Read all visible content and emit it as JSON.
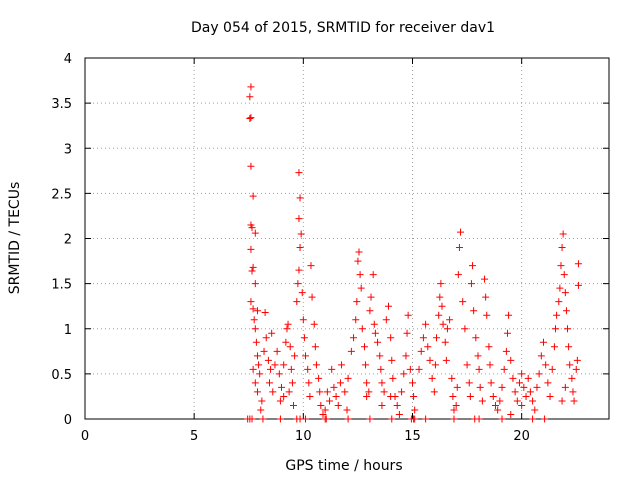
{
  "chart_data": {
    "type": "scatter",
    "title": "Day 054 of 2015, SRMTID for receiver dav1",
    "xlabel": "GPS time / hours",
    "ylabel": "SRMTID / TECUs",
    "xlim": [
      0,
      24
    ],
    "ylim": [
      0,
      4
    ],
    "xticks": [
      0,
      5,
      10,
      15,
      20
    ],
    "xtick_labels": [
      "0",
      "5",
      "10",
      "15",
      "20"
    ],
    "yticks": [
      0,
      0.5,
      1,
      1.5,
      2,
      2.5,
      3,
      3.5,
      4
    ],
    "ytick_labels": [
      "0",
      "0.5",
      "1",
      "1.5",
      "2",
      "2.5",
      "3",
      "3.5",
      "4"
    ],
    "grid": true,
    "marker": "plus",
    "color": "#ff0000",
    "series": [
      {
        "values": [
          [
            7.6,
            3.68
          ],
          [
            7.55,
            3.57
          ],
          [
            7.6,
            3.34
          ],
          [
            7.55,
            3.33
          ],
          [
            7.6,
            2.8
          ],
          [
            7.7,
            2.47
          ],
          [
            7.6,
            2.15
          ],
          [
            7.65,
            2.12
          ],
          [
            7.8,
            2.06
          ],
          [
            7.6,
            1.88
          ],
          [
            7.7,
            1.68
          ],
          [
            7.65,
            1.64
          ],
          [
            7.8,
            1.5
          ],
          [
            7.9,
            1.2
          ],
          [
            7.6,
            1.3
          ],
          [
            7.7,
            1.22
          ],
          [
            7.75,
            1.1
          ],
          [
            7.8,
            1.0
          ],
          [
            7.85,
            0.85
          ],
          [
            7.9,
            0.7
          ],
          [
            7.95,
            0.6
          ],
          [
            8.0,
            0.5
          ],
          [
            7.8,
            0.4
          ],
          [
            7.9,
            0.3
          ],
          [
            8.1,
            0.2
          ],
          [
            8.05,
            0.1
          ],
          [
            7.7,
            0.55
          ],
          [
            8.2,
            0.75
          ],
          [
            8.3,
            0.9
          ],
          [
            8.25,
            1.18
          ],
          [
            8.4,
            0.65
          ],
          [
            8.5,
            0.55
          ],
          [
            8.45,
            0.4
          ],
          [
            8.6,
            0.3
          ],
          [
            8.7,
            0.6
          ],
          [
            8.8,
            0.75
          ],
          [
            8.55,
            0.95
          ],
          [
            8.9,
            0.5
          ],
          [
            9.0,
            0.35
          ],
          [
            8.95,
            0.2
          ],
          [
            9.1,
            0.6
          ],
          [
            9.2,
            0.85
          ],
          [
            9.25,
            1.0
          ],
          [
            9.3,
            1.05
          ],
          [
            9.4,
            0.8
          ],
          [
            9.45,
            0.55
          ],
          [
            9.5,
            0.4
          ],
          [
            9.35,
            0.3
          ],
          [
            9.55,
            0.15
          ],
          [
            9.6,
            0.7
          ],
          [
            9.7,
            1.3
          ],
          [
            9.75,
            1.5
          ],
          [
            9.8,
            1.65
          ],
          [
            9.85,
            1.9
          ],
          [
            9.9,
            2.05
          ],
          [
            9.8,
            2.22
          ],
          [
            9.85,
            2.45
          ],
          [
            9.8,
            2.73
          ],
          [
            9.95,
            1.4
          ],
          [
            10.0,
            1.1
          ],
          [
            10.05,
            0.9
          ],
          [
            10.1,
            0.7
          ],
          [
            10.2,
            0.55
          ],
          [
            10.25,
            0.4
          ],
          [
            10.3,
            0.25
          ],
          [
            10.35,
            1.7
          ],
          [
            10.4,
            1.35
          ],
          [
            10.5,
            1.05
          ],
          [
            10.55,
            0.8
          ],
          [
            10.6,
            0.6
          ],
          [
            10.7,
            0.45
          ],
          [
            10.75,
            0.3
          ],
          [
            10.8,
            0.15
          ],
          [
            10.9,
            0.05
          ],
          [
            11.0,
            0.1
          ],
          [
            11.1,
            0.3
          ],
          [
            11.2,
            0.2
          ],
          [
            11.3,
            0.55
          ],
          [
            11.4,
            0.35
          ],
          [
            11.5,
            0.25
          ],
          [
            11.6,
            0.15
          ],
          [
            11.7,
            0.4
          ],
          [
            11.75,
            0.6
          ],
          [
            11.9,
            0.3
          ],
          [
            12.0,
            0.1
          ],
          [
            12.05,
            0.45
          ],
          [
            12.2,
            0.75
          ],
          [
            12.3,
            0.9
          ],
          [
            12.4,
            1.1
          ],
          [
            12.45,
            1.3
          ],
          [
            12.5,
            1.75
          ],
          [
            12.55,
            1.85
          ],
          [
            12.6,
            1.6
          ],
          [
            12.65,
            1.45
          ],
          [
            12.7,
            1.0
          ],
          [
            12.8,
            0.8
          ],
          [
            12.85,
            0.6
          ],
          [
            12.9,
            0.4
          ],
          [
            13.0,
            0.3
          ],
          [
            13.05,
            1.2
          ],
          [
            13.1,
            1.35
          ],
          [
            13.2,
            1.6
          ],
          [
            13.25,
            1.05
          ],
          [
            13.3,
            0.95
          ],
          [
            13.4,
            0.85
          ],
          [
            13.5,
            0.7
          ],
          [
            13.55,
            0.55
          ],
          [
            13.6,
            0.4
          ],
          [
            13.7,
            0.3
          ],
          [
            13.8,
            1.1
          ],
          [
            13.9,
            1.25
          ],
          [
            14.0,
            0.9
          ],
          [
            14.05,
            0.65
          ],
          [
            14.1,
            0.45
          ],
          [
            14.2,
            0.25
          ],
          [
            14.3,
            0.15
          ],
          [
            14.4,
            0.05
          ],
          [
            14.5,
            0.3
          ],
          [
            14.6,
            0.5
          ],
          [
            14.7,
            0.7
          ],
          [
            14.75,
            0.95
          ],
          [
            14.8,
            1.15
          ],
          [
            14.9,
            0.55
          ],
          [
            15.0,
            0.4
          ],
          [
            15.05,
            0.25
          ],
          [
            15.1,
            0.1
          ],
          [
            15.3,
            0.55
          ],
          [
            15.4,
            0.75
          ],
          [
            15.5,
            0.9
          ],
          [
            15.6,
            1.05
          ],
          [
            15.7,
            0.8
          ],
          [
            15.8,
            0.65
          ],
          [
            15.9,
            0.45
          ],
          [
            16.0,
            0.3
          ],
          [
            16.05,
            0.6
          ],
          [
            16.1,
            0.9
          ],
          [
            16.2,
            1.15
          ],
          [
            16.25,
            1.35
          ],
          [
            16.3,
            1.5
          ],
          [
            16.35,
            1.25
          ],
          [
            16.4,
            1.05
          ],
          [
            16.5,
            0.85
          ],
          [
            16.55,
            0.65
          ],
          [
            16.6,
            1.0
          ],
          [
            16.7,
            1.1
          ],
          [
            16.8,
            0.45
          ],
          [
            16.85,
            0.25
          ],
          [
            16.9,
            0.1
          ],
          [
            17.0,
            0.15
          ],
          [
            17.05,
            0.35
          ],
          [
            17.1,
            1.6
          ],
          [
            17.15,
            1.9
          ],
          [
            17.2,
            2.07
          ],
          [
            17.3,
            1.3
          ],
          [
            17.4,
            1.0
          ],
          [
            17.5,
            0.6
          ],
          [
            17.6,
            0.4
          ],
          [
            17.65,
            0.25
          ],
          [
            17.7,
            1.5
          ],
          [
            17.75,
            1.7
          ],
          [
            17.8,
            1.2
          ],
          [
            17.9,
            0.9
          ],
          [
            18.0,
            0.7
          ],
          [
            18.05,
            0.55
          ],
          [
            18.1,
            0.35
          ],
          [
            18.2,
            0.2
          ],
          [
            18.3,
            1.55
          ],
          [
            18.35,
            1.35
          ],
          [
            18.4,
            1.15
          ],
          [
            18.5,
            0.8
          ],
          [
            18.55,
            0.6
          ],
          [
            18.6,
            0.4
          ],
          [
            18.7,
            0.25
          ],
          [
            18.8,
            0.15
          ],
          [
            18.9,
            0.1
          ],
          [
            19.0,
            0.2
          ],
          [
            19.1,
            0.35
          ],
          [
            19.2,
            0.55
          ],
          [
            19.3,
            0.75
          ],
          [
            19.35,
            0.95
          ],
          [
            19.4,
            1.15
          ],
          [
            19.5,
            0.65
          ],
          [
            19.6,
            0.45
          ],
          [
            19.7,
            0.3
          ],
          [
            19.8,
            0.2
          ],
          [
            19.9,
            0.4
          ],
          [
            20.0,
            0.5
          ],
          [
            20.1,
            0.35
          ],
          [
            20.2,
            0.25
          ],
          [
            20.3,
            0.45
          ],
          [
            20.4,
            0.3
          ],
          [
            20.5,
            0.2
          ],
          [
            20.6,
            0.1
          ],
          [
            20.7,
            0.35
          ],
          [
            20.8,
            0.5
          ],
          [
            20.9,
            0.7
          ],
          [
            21.0,
            0.85
          ],
          [
            21.1,
            0.6
          ],
          [
            21.2,
            0.4
          ],
          [
            21.3,
            0.25
          ],
          [
            21.4,
            0.55
          ],
          [
            21.5,
            0.8
          ],
          [
            21.55,
            1.0
          ],
          [
            21.6,
            1.15
          ],
          [
            21.7,
            1.3
          ],
          [
            21.75,
            1.45
          ],
          [
            21.8,
            1.7
          ],
          [
            21.85,
            1.9
          ],
          [
            21.9,
            2.05
          ],
          [
            21.95,
            1.6
          ],
          [
            22.0,
            1.4
          ],
          [
            22.05,
            1.2
          ],
          [
            22.1,
            1.0
          ],
          [
            22.15,
            0.8
          ],
          [
            22.2,
            0.6
          ],
          [
            22.3,
            0.45
          ],
          [
            22.35,
            0.3
          ],
          [
            22.4,
            0.2
          ],
          [
            22.5,
            0.55
          ],
          [
            22.55,
            0.65
          ],
          [
            22.6,
            1.72
          ],
          [
            22.6,
            1.48
          ],
          [
            21.85,
            0.2
          ],
          [
            22.0,
            0.35
          ],
          [
            20.0,
            0.15
          ],
          [
            19.5,
            0.05
          ],
          [
            14.0,
            0.25
          ],
          [
            13.6,
            0.15
          ],
          [
            12.9,
            0.25
          ],
          [
            9.1,
            0.25
          ]
        ]
      },
      {
        "values": [
          [
            7.45,
            0
          ],
          [
            7.55,
            0
          ],
          [
            7.65,
            0
          ],
          [
            8.15,
            0
          ],
          [
            8.95,
            0
          ],
          [
            9.7,
            0
          ],
          [
            9.85,
            0
          ],
          [
            10.1,
            0
          ],
          [
            11.0,
            0
          ],
          [
            11.05,
            0
          ],
          [
            12.05,
            0
          ],
          [
            13.05,
            0
          ],
          [
            14.05,
            0
          ],
          [
            14.95,
            0
          ],
          [
            15.05,
            0
          ],
          [
            15.1,
            0
          ],
          [
            15.6,
            0
          ],
          [
            16.9,
            0
          ],
          [
            17.85,
            0
          ],
          [
            18.05,
            0
          ],
          [
            19.1,
            0
          ],
          [
            20.5,
            0
          ],
          [
            21.05,
            0
          ]
        ]
      }
    ]
  }
}
